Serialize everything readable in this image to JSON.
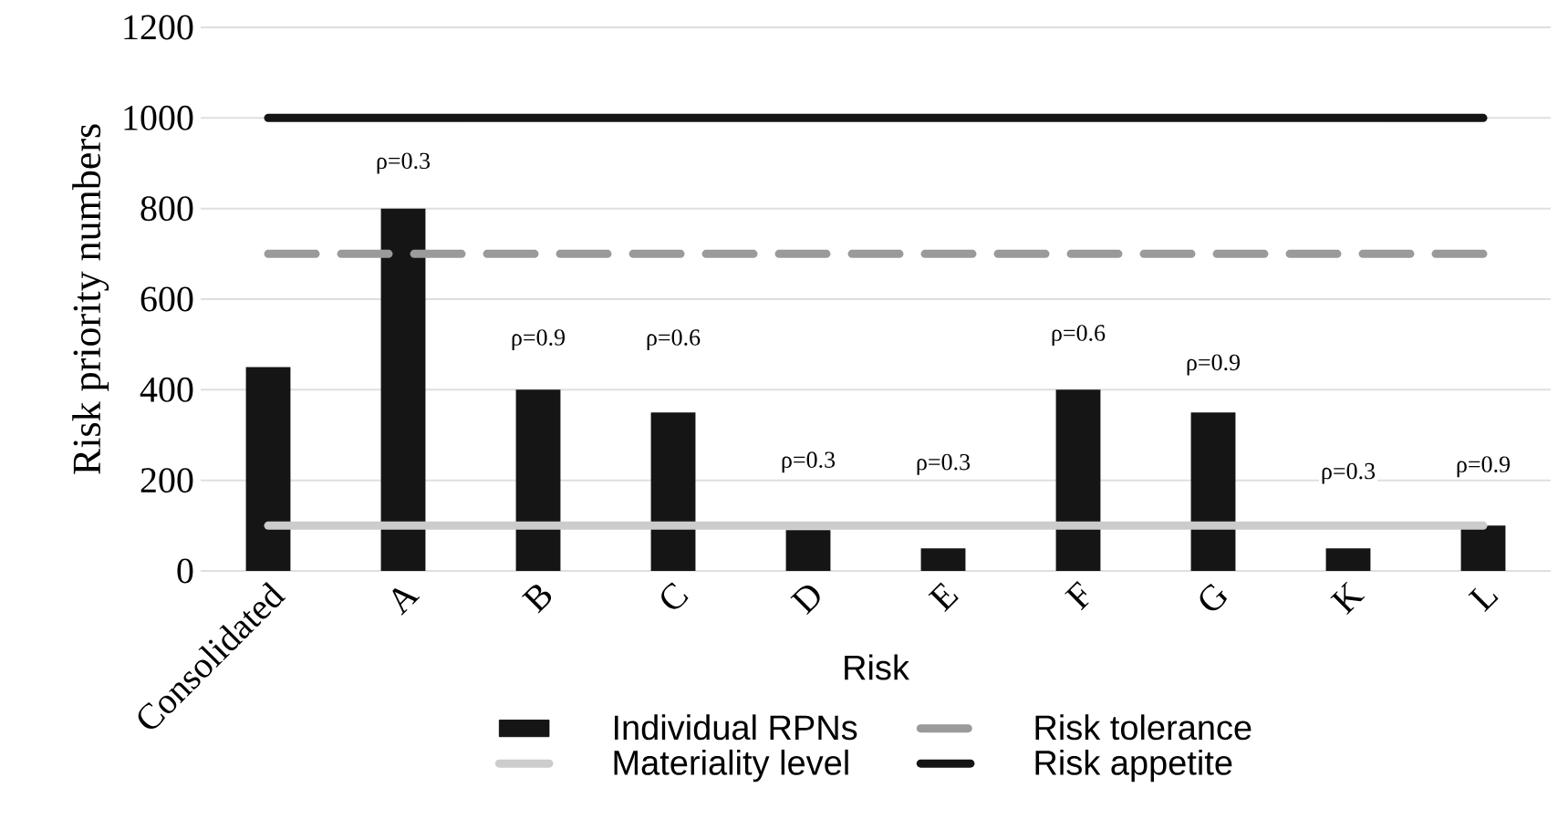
{
  "chart_data": {
    "type": "bar",
    "xlabel": "Risk",
    "ylabel": "Risk priority numbers",
    "categories": [
      "Consolidated",
      "A",
      "B",
      "C",
      "D",
      "E",
      "F",
      "G",
      "K",
      "L"
    ],
    "series": [
      {
        "name": "Individual RPNs",
        "color": "#151515",
        "values": [
          450,
          800,
          400,
          350,
          90,
          50,
          400,
          350,
          50,
          100
        ]
      },
      {
        "name": "Risk tolerance",
        "type": "line",
        "color": "#9a9a9a",
        "line_style": "dashed",
        "values": [
          700,
          700,
          700,
          700,
          700,
          700,
          700,
          700,
          700,
          700
        ]
      },
      {
        "name": "Materiality level",
        "type": "line",
        "color": "#cccccc",
        "line_style": "solid",
        "values": [
          100,
          100,
          100,
          100,
          100,
          100,
          100,
          100,
          100,
          100
        ]
      },
      {
        "name": "Risk appetite",
        "type": "line",
        "color": "#151515",
        "line_style": "solid",
        "values": [
          1000,
          1000,
          1000,
          1000,
          1000,
          1000,
          1000,
          1000,
          1000,
          1000
        ]
      }
    ],
    "annotations": [
      {
        "text": "ρ=0.3",
        "x": "A",
        "y": 900
      },
      {
        "text": "ρ=0.9",
        "x": "B",
        "y": 510
      },
      {
        "text": "ρ=0.6",
        "x": "C",
        "y": 510
      },
      {
        "text": "ρ=0.3",
        "x": "D",
        "y": 240
      },
      {
        "text": "ρ=0.3",
        "x": "E",
        "y": 235
      },
      {
        "text": "ρ=0.6",
        "x": "F",
        "y": 520
      },
      {
        "text": "ρ=0.9",
        "x": "G",
        "y": 455
      },
      {
        "text": "ρ=0.3",
        "x": "K",
        "y": 215
      },
      {
        "text": "ρ=0.9",
        "x": "L",
        "y": 230
      }
    ],
    "ylim": [
      0,
      1200
    ],
    "yticks": [
      0,
      200,
      400,
      600,
      800,
      1000,
      1200
    ],
    "grid": "y",
    "legend": "bottom"
  }
}
